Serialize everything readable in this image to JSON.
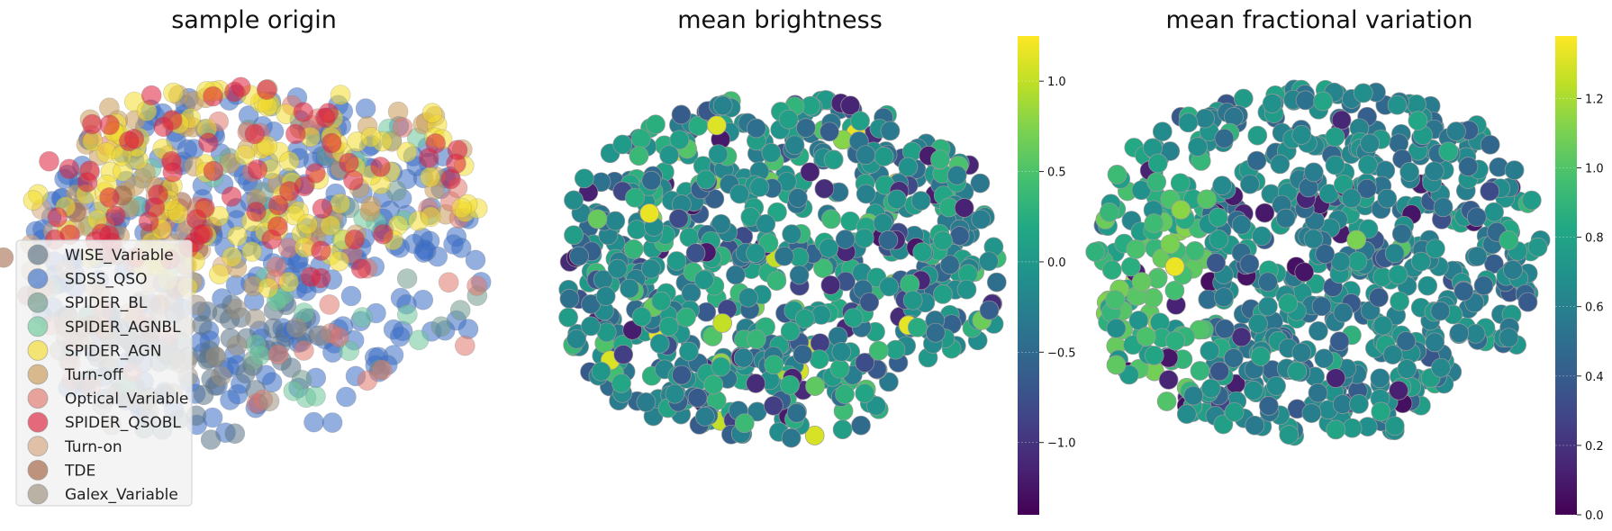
{
  "chart_data": [
    {
      "type": "scatter",
      "title": "sample origin",
      "legend_position": "lower-left",
      "series": [
        {
          "name": "WISE_Variable",
          "color": "#5a7386",
          "count": 60
        },
        {
          "name": "SDSS_QSO",
          "color": "#3a6ec6",
          "count": 320
        },
        {
          "name": "SPIDER_BL",
          "color": "#6f9a8a",
          "count": 20
        },
        {
          "name": "SPIDER_AGNBL",
          "color": "#6cc79a",
          "count": 35
        },
        {
          "name": "SPIDER_AGN",
          "color": "#f2dc2e",
          "count": 120
        },
        {
          "name": "Turn-off",
          "color": "#c99a57",
          "count": 60
        },
        {
          "name": "Optical_Variable",
          "color": "#e0766c",
          "count": 55
        },
        {
          "name": "SPIDER_QSOBL",
          "color": "#dc1f3a",
          "count": 70
        },
        {
          "name": "Turn-on",
          "color": "#d6a47c",
          "count": 25
        },
        {
          "name": "TDE",
          "color": "#9f5f3d",
          "count": 20
        },
        {
          "name": "Galex_Variable",
          "color": "#9c8f7d",
          "count": 30
        }
      ]
    },
    {
      "type": "scatter",
      "title": "mean brightness",
      "colormap": "viridis",
      "clim": [
        -1.4,
        1.25
      ],
      "colorbar_ticks": [
        "1.0",
        "0.5",
        "0.0",
        "−0.5",
        "−1.0"
      ],
      "colorbar_tick_values": [
        1.0,
        0.5,
        0.0,
        -0.5,
        -1.0
      ]
    },
    {
      "type": "scatter",
      "title": "mean fractional variation",
      "colormap": "viridis",
      "clim": [
        0.0,
        1.38
      ],
      "colorbar_ticks": [
        "1.2",
        "1.0",
        "0.8",
        "0.6",
        "0.4",
        "0.2",
        "0.0"
      ],
      "colorbar_tick_values": [
        1.2,
        1.0,
        0.8,
        0.6,
        0.4,
        0.2,
        0.0
      ]
    }
  ]
}
